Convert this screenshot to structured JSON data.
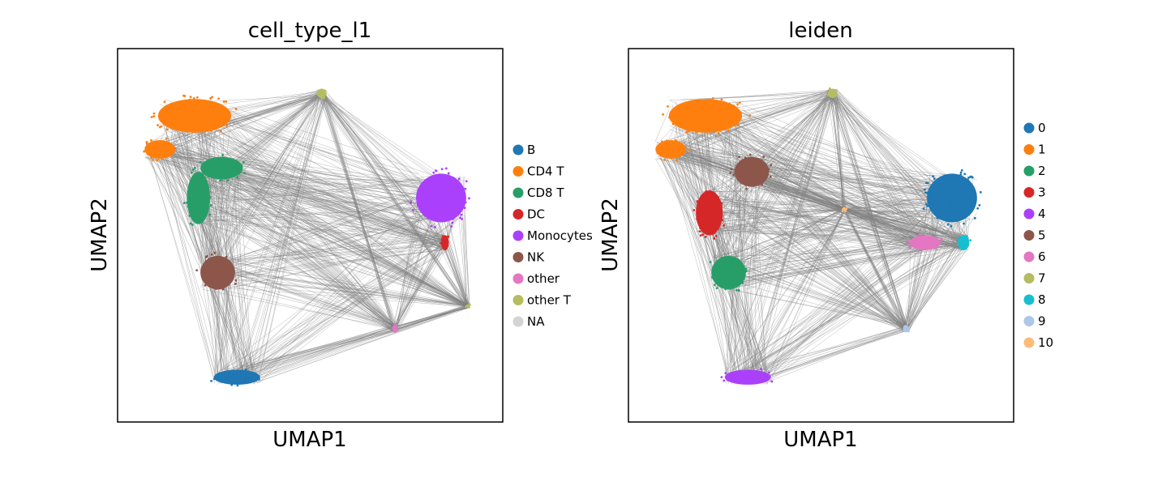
{
  "chart_data": [
    {
      "type": "scatter",
      "title": "cell_type_l1",
      "xlabel": "UMAP1",
      "ylabel": "UMAP2",
      "xlim": [
        0,
        100
      ],
      "ylim": [
        0,
        100
      ],
      "grid": false,
      "legend_position": "right",
      "background_edges_color": "#808080",
      "legend": [
        {
          "label": "B",
          "color": "#1f77b4"
        },
        {
          "label": "CD4 T",
          "color": "#ff7f0e"
        },
        {
          "label": "CD8 T",
          "color": "#279e68"
        },
        {
          "label": "DC",
          "color": "#d62728"
        },
        {
          "label": "Monocytes",
          "color": "#aa40fc"
        },
        {
          "label": "NK",
          "color": "#8c564b"
        },
        {
          "label": "other",
          "color": "#e377c2"
        },
        {
          "label": "other T",
          "color": "#b5bd61"
        },
        {
          "label": "NA",
          "color": "#d3d3d3"
        }
      ],
      "clusters": [
        {
          "label": "CD4 T",
          "x": 20,
          "y": 82,
          "w": 19,
          "h": 9
        },
        {
          "label": "CD4 T",
          "x": 11,
          "y": 73,
          "w": 8,
          "h": 5
        },
        {
          "label": "CD8 T",
          "x": 27,
          "y": 68,
          "w": 11,
          "h": 6
        },
        {
          "label": "CD8 T",
          "x": 21,
          "y": 60,
          "w": 6,
          "h": 14
        },
        {
          "label": "NK",
          "x": 26,
          "y": 40,
          "w": 9,
          "h": 9
        },
        {
          "label": "B",
          "x": 31,
          "y": 12,
          "w": 12,
          "h": 4
        },
        {
          "label": "Monocytes",
          "x": 84,
          "y": 60,
          "w": 13,
          "h": 13
        },
        {
          "label": "DC",
          "x": 85,
          "y": 48,
          "w": 2,
          "h": 4
        },
        {
          "label": "other",
          "x": 72,
          "y": 25,
          "w": 1.5,
          "h": 2
        },
        {
          "label": "other T",
          "x": 53,
          "y": 88,
          "w": 2.5,
          "h": 2.5
        },
        {
          "label": "other T",
          "x": 91,
          "y": 31,
          "w": 1,
          "h": 1
        }
      ]
    },
    {
      "type": "scatter",
      "title": "leiden",
      "xlabel": "UMAP1",
      "ylabel": "UMAP2",
      "xlim": [
        0,
        100
      ],
      "ylim": [
        0,
        100
      ],
      "grid": false,
      "legend_position": "right",
      "background_edges_color": "#808080",
      "legend": [
        {
          "label": "0",
          "color": "#1f77b4"
        },
        {
          "label": "1",
          "color": "#ff7f0e"
        },
        {
          "label": "2",
          "color": "#279e68"
        },
        {
          "label": "3",
          "color": "#d62728"
        },
        {
          "label": "4",
          "color": "#aa40fc"
        },
        {
          "label": "5",
          "color": "#8c564b"
        },
        {
          "label": "6",
          "color": "#e377c2"
        },
        {
          "label": "7",
          "color": "#b5bd61"
        },
        {
          "label": "8",
          "color": "#17becf"
        },
        {
          "label": "9",
          "color": "#aec7e8"
        },
        {
          "label": "10",
          "color": "#ffbb78"
        }
      ],
      "clusters": [
        {
          "label": "1",
          "x": 20,
          "y": 82,
          "w": 19,
          "h": 9
        },
        {
          "label": "1",
          "x": 11,
          "y": 73,
          "w": 8,
          "h": 5
        },
        {
          "label": "5",
          "x": 32,
          "y": 67,
          "w": 9,
          "h": 8
        },
        {
          "label": "3",
          "x": 21,
          "y": 56,
          "w": 7,
          "h": 12
        },
        {
          "label": "2",
          "x": 26,
          "y": 40,
          "w": 9,
          "h": 9
        },
        {
          "label": "4",
          "x": 31,
          "y": 12,
          "w": 12,
          "h": 4
        },
        {
          "label": "0",
          "x": 84,
          "y": 60,
          "w": 13,
          "h": 13
        },
        {
          "label": "6",
          "x": 77,
          "y": 48,
          "w": 8,
          "h": 4
        },
        {
          "label": "8",
          "x": 87,
          "y": 48,
          "w": 3,
          "h": 4
        },
        {
          "label": "9",
          "x": 72,
          "y": 25,
          "w": 1.5,
          "h": 2
        },
        {
          "label": "7",
          "x": 53,
          "y": 88,
          "w": 2.5,
          "h": 2.5
        },
        {
          "label": "10",
          "x": 56,
          "y": 57,
          "w": 1,
          "h": 1
        }
      ]
    }
  ]
}
